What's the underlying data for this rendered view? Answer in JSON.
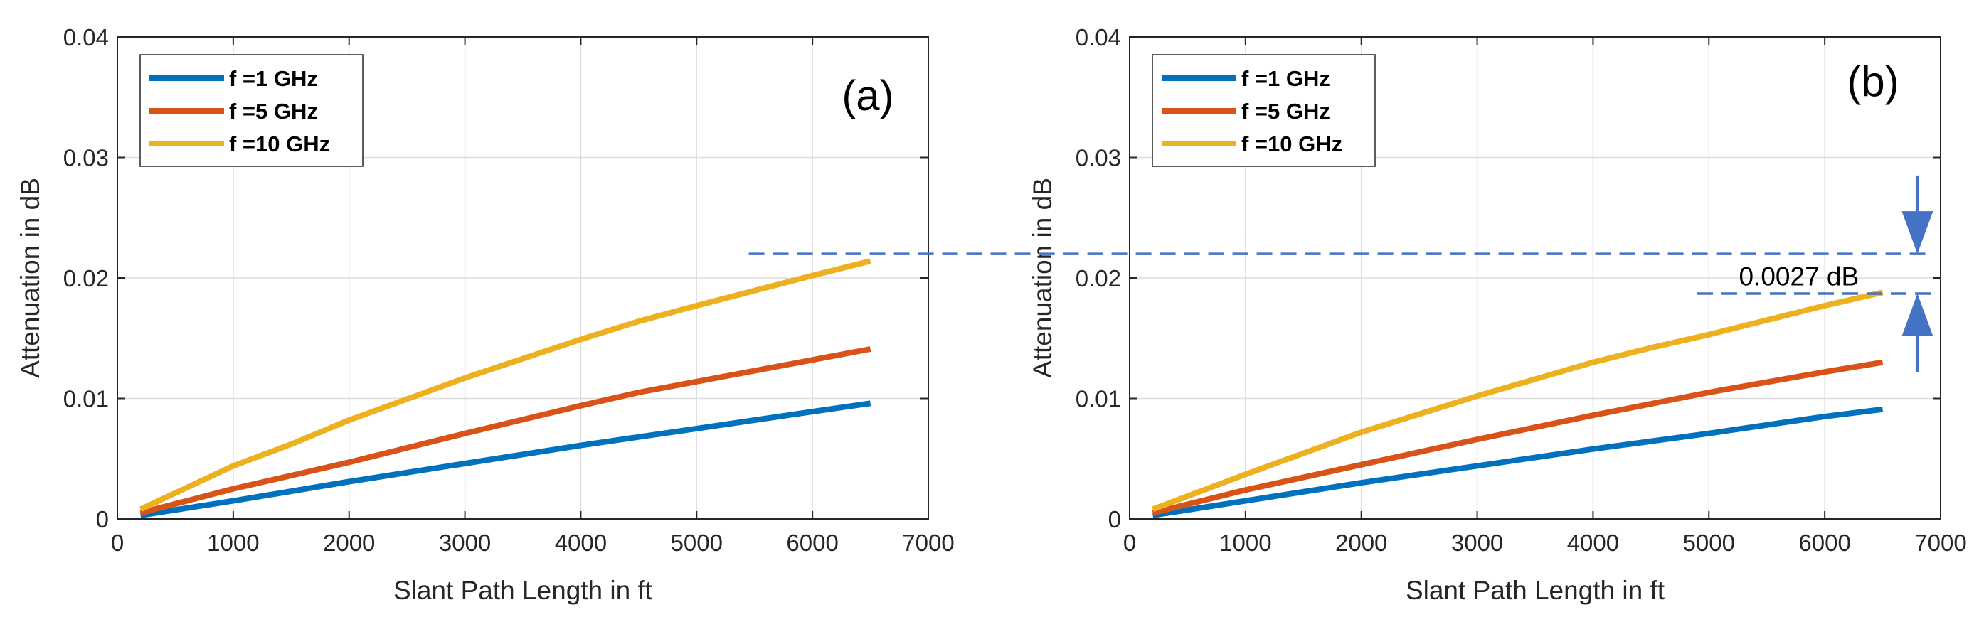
{
  "chart_data": [
    {
      "type": "line",
      "panel_label": "(a)",
      "xlabel": "Slant Path Length in ft",
      "ylabel": "Attenuation in dB",
      "xlim": [
        0,
        7000
      ],
      "ylim": [
        0,
        0.04
      ],
      "xticks": [
        0,
        1000,
        2000,
        3000,
        4000,
        5000,
        6000,
        7000
      ],
      "xtick_labels": [
        "0",
        "1000",
        "2000",
        "3000",
        "4000",
        "5000",
        "6000",
        "7000"
      ],
      "yticks": [
        0,
        0.01,
        0.02,
        0.03,
        0.04
      ],
      "ytick_labels": [
        "0",
        "0.01",
        "0.02",
        "0.03",
        "0.04"
      ],
      "grid": true,
      "legend_position": "top-left",
      "series": [
        {
          "name": "f =1 GHz",
          "color": "#0072BD",
          "x": [
            200,
            1000,
            2000,
            3000,
            4000,
            4500,
            5000,
            6000,
            6500
          ],
          "y": [
            0.0003,
            0.0015,
            0.0031,
            0.0046,
            0.0061,
            0.0068,
            0.0075,
            0.0089,
            0.0096
          ]
        },
        {
          "name": "f =5 GHz",
          "color": "#D95319",
          "x": [
            200,
            1000,
            1500,
            2000,
            3000,
            4000,
            4500,
            5000,
            6000,
            6500
          ],
          "y": [
            0.0005,
            0.0025,
            0.0036,
            0.0047,
            0.0071,
            0.0094,
            0.0105,
            0.0114,
            0.0132,
            0.0141
          ]
        },
        {
          "name": "f =10 GHz",
          "color": "#EDB120",
          "x": [
            200,
            1000,
            1500,
            2000,
            3000,
            4000,
            4500,
            5000,
            6000,
            6500
          ],
          "y": [
            0.0008,
            0.0044,
            0.0062,
            0.0082,
            0.0117,
            0.0149,
            0.0164,
            0.0177,
            0.0202,
            0.0214
          ]
        }
      ],
      "annotations": [
        {
          "type": "dashed-hline",
          "y": 0.022,
          "x_start": 5450,
          "color": "#4472C4"
        }
      ]
    },
    {
      "type": "line",
      "panel_label": "(b)",
      "xlabel": "Slant Path Length in ft",
      "ylabel": "Attenuation in dB",
      "xlim": [
        0,
        7000
      ],
      "ylim": [
        0,
        0.04
      ],
      "xticks": [
        0,
        1000,
        2000,
        3000,
        4000,
        5000,
        6000,
        7000
      ],
      "xtick_labels": [
        "0",
        "1000",
        "2000",
        "3000",
        "4000",
        "5000",
        "6000",
        "7000"
      ],
      "yticks": [
        0,
        0.01,
        0.02,
        0.03,
        0.04
      ],
      "ytick_labels": [
        "0",
        "0.01",
        "0.02",
        "0.03",
        "0.04"
      ],
      "grid": true,
      "legend_position": "top-left",
      "series": [
        {
          "name": "f =1 GHz",
          "color": "#0072BD",
          "x": [
            200,
            1000,
            2000,
            3000,
            4000,
            5000,
            6000,
            6500
          ],
          "y": [
            0.0003,
            0.0015,
            0.003,
            0.0044,
            0.0058,
            0.0071,
            0.0085,
            0.0091
          ]
        },
        {
          "name": "f =5 GHz",
          "color": "#D95319",
          "x": [
            200,
            1000,
            2000,
            3000,
            4000,
            5000,
            6000,
            6500
          ],
          "y": [
            0.0005,
            0.0024,
            0.0045,
            0.0066,
            0.0086,
            0.0105,
            0.0122,
            0.013
          ]
        },
        {
          "name": "f =10 GHz",
          "color": "#EDB120",
          "x": [
            200,
            1000,
            2000,
            3000,
            4000,
            4500,
            5000,
            6000,
            6500
          ],
          "y": [
            0.0008,
            0.0037,
            0.0072,
            0.0102,
            0.013,
            0.0142,
            0.0153,
            0.0177,
            0.0188
          ]
        }
      ],
      "annotations": [
        {
          "type": "dashed-hline",
          "y": 0.022,
          "x_end": 7000,
          "color": "#4472C4"
        },
        {
          "type": "dashed-hline",
          "y": 0.0187,
          "x_start": 4900,
          "x_end": 6800,
          "color": "#4472C4"
        },
        {
          "type": "text",
          "text": "0.0027 dB",
          "x": 5900,
          "y": 0.0201
        },
        {
          "type": "arrow-down",
          "x": 6800,
          "y_from": 0.0285,
          "y_to": 0.022,
          "color": "#4472C4"
        },
        {
          "type": "arrow-up",
          "x": 6800,
          "y_from": 0.0122,
          "y_to": 0.0187,
          "color": "#4472C4"
        }
      ]
    }
  ]
}
